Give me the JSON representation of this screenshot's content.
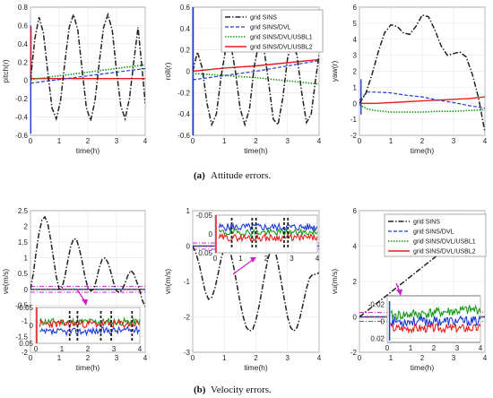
{
  "captions": {
    "a_label": "(a)",
    "a_text": "Attitude errors.",
    "b_label": "(b)",
    "b_text": "Velocity errors."
  },
  "legend_entries": [
    "grid SINS",
    "grid SINS/DVL",
    "grid SINS/DVL/USBL1",
    "grid SINS/DVL/USBL2"
  ],
  "colors": {
    "sins": "#222222",
    "dvl": "#1f3bd6",
    "usbl1": "#1a9a1a",
    "usbl2": "#e81c1c",
    "threshold": "#d11fd1"
  },
  "chart_data": [
    {
      "id": "pitch",
      "type": "line",
      "xlabel": "time(h)",
      "ylabel": "pitch(r)",
      "xlim": [
        0,
        4
      ],
      "ylim": [
        -0.6,
        0.8
      ],
      "xticks": [
        "0",
        "1",
        "2",
        "3",
        "4"
      ],
      "yticks": [
        "-0.6",
        "-0.4",
        "-0.2",
        "0",
        "0.2",
        "0.4",
        "0.6",
        "0.8"
      ],
      "grid": true,
      "series": [
        {
          "style": "sins",
          "x": [
            0,
            0.15,
            0.3,
            0.45,
            0.6,
            0.75,
            0.9,
            1.05,
            1.2,
            1.35,
            1.5,
            1.65,
            1.8,
            1.95,
            2.1,
            2.25,
            2.4,
            2.55,
            2.7,
            2.85,
            3.0,
            3.15,
            3.3,
            3.45,
            3.6,
            3.75,
            3.9,
            4.0
          ],
          "y": [
            0,
            0.45,
            0.69,
            0.52,
            0.1,
            -0.3,
            -0.42,
            -0.22,
            0.2,
            0.58,
            0.72,
            0.55,
            0.12,
            -0.3,
            -0.44,
            -0.22,
            0.2,
            0.58,
            0.72,
            0.55,
            0.1,
            -0.28,
            -0.42,
            -0.2,
            0.2,
            0.58,
            0.1,
            -0.25
          ]
        },
        {
          "style": "dvl",
          "x": [
            0,
            1,
            2,
            3,
            4
          ],
          "y": [
            -0.03,
            0.01,
            0.05,
            0.09,
            0.13
          ]
        },
        {
          "style": "usbl1",
          "x": [
            0,
            1,
            2,
            3,
            4
          ],
          "y": [
            0.01,
            0.05,
            0.09,
            0.13,
            0.17
          ]
        },
        {
          "style": "usbl2",
          "x": [
            0,
            1,
            2,
            3,
            4
          ],
          "y": [
            0.02,
            0.02,
            0.02,
            0.02,
            0.02
          ]
        }
      ]
    },
    {
      "id": "roll",
      "type": "line",
      "xlabel": "time(h)",
      "ylabel": "roll(r)",
      "xlim": [
        0,
        4
      ],
      "ylim": [
        -0.6,
        0.6
      ],
      "xticks": [
        "0",
        "1",
        "2",
        "3",
        "4"
      ],
      "yticks": [
        "-0.6",
        "-0.4",
        "-0.2",
        "0",
        "0.2",
        "0.4",
        "0.6"
      ],
      "grid": true,
      "legend": "top-right",
      "series": [
        {
          "style": "sins",
          "x": [
            0,
            0.15,
            0.3,
            0.45,
            0.6,
            0.75,
            0.9,
            1.05,
            1.2,
            1.35,
            1.5,
            1.65,
            1.8,
            1.95,
            2.1,
            2.25,
            2.4,
            2.55,
            2.7,
            2.85,
            3.0,
            3.15,
            3.3,
            3.45,
            3.6,
            3.75,
            3.9,
            4.0
          ],
          "y": [
            0,
            0.18,
            0.03,
            -0.3,
            -0.5,
            -0.4,
            -0.05,
            0.22,
            0.26,
            0.0,
            -0.35,
            -0.5,
            -0.35,
            0.05,
            0.27,
            0.22,
            -0.1,
            -0.45,
            -0.5,
            -0.25,
            0.12,
            0.28,
            0.15,
            -0.2,
            -0.48,
            -0.4,
            -0.05,
            0.15
          ]
        },
        {
          "style": "dvl",
          "x": [
            0,
            1,
            2,
            3,
            4
          ],
          "y": [
            -0.08,
            -0.04,
            0.0,
            0.05,
            0.1
          ]
        },
        {
          "style": "usbl1",
          "x": [
            0,
            1,
            2,
            3,
            4
          ],
          "y": [
            -0.02,
            -0.04,
            -0.06,
            -0.09,
            -0.12
          ]
        },
        {
          "style": "usbl2",
          "x": [
            0,
            1,
            2,
            3,
            4
          ],
          "y": [
            0.0,
            0.03,
            0.05,
            0.08,
            0.11
          ]
        }
      ]
    },
    {
      "id": "yaw",
      "type": "line",
      "xlabel": "time(h)",
      "ylabel": "yaw(r)",
      "xlim": [
        0,
        4
      ],
      "ylim": [
        -2,
        6
      ],
      "xticks": [
        "0",
        "1",
        "2",
        "3",
        "4"
      ],
      "yticks": [
        "-2",
        "-1",
        "0",
        "1",
        "2",
        "3",
        "4",
        "5",
        "6"
      ],
      "grid": true,
      "series": [
        {
          "style": "sins",
          "x": [
            0,
            0.2,
            0.4,
            0.6,
            0.8,
            1.0,
            1.2,
            1.4,
            1.6,
            1.8,
            2.0,
            2.2,
            2.4,
            2.6,
            2.8,
            3.0,
            3.2,
            3.4,
            3.6,
            3.8,
            4.0
          ],
          "y": [
            0,
            0.6,
            1.8,
            3.2,
            4.4,
            4.9,
            4.8,
            4.4,
            4.3,
            4.8,
            5.5,
            5.4,
            4.6,
            3.6,
            3.0,
            3.1,
            3.2,
            2.9,
            1.8,
            0.3,
            -1.8
          ]
        },
        {
          "style": "dvl",
          "x": [
            0,
            0.25,
            0.5,
            1.0,
            1.5,
            2.0,
            2.5,
            3.0,
            3.5,
            4.0
          ],
          "y": [
            0.2,
            0.7,
            0.7,
            0.65,
            0.5,
            0.4,
            0.2,
            0.05,
            -0.15,
            -0.3
          ]
        },
        {
          "style": "usbl1",
          "x": [
            0,
            0.25,
            0.5,
            1.0,
            1.5,
            2.0,
            2.5,
            3.0,
            3.5,
            4.0
          ],
          "y": [
            -0.1,
            -0.35,
            -0.45,
            -0.55,
            -0.55,
            -0.55,
            -0.5,
            -0.5,
            -0.45,
            -0.4
          ]
        },
        {
          "style": "usbl2",
          "x": [
            0,
            0.25,
            0.5,
            1.0,
            1.5,
            2.0,
            2.5,
            3.0,
            3.5,
            4.0
          ],
          "y": [
            0.0,
            0.0,
            0.0,
            0.05,
            0.1,
            0.15,
            0.2,
            0.25,
            0.3,
            0.4
          ]
        }
      ]
    },
    {
      "id": "ve",
      "type": "line",
      "xlabel": "time(h)",
      "ylabel": "ve(m/s)",
      "xlim": [
        0,
        4
      ],
      "ylim": [
        -2,
        2.5
      ],
      "xticks": [
        "0",
        "1",
        "2",
        "3",
        "4"
      ],
      "yticks": [
        "-2",
        "-1.5",
        "-1",
        "-0.5",
        "0",
        "0.5",
        "1",
        "1.5",
        "2",
        "2.5"
      ],
      "grid": true,
      "thresholds": [
        0.09,
        -0.09
      ],
      "series": [
        {
          "style": "sins",
          "x": [
            0,
            0.1,
            0.2,
            0.3,
            0.4,
            0.5,
            0.6,
            0.7,
            0.8,
            0.9,
            1.0,
            1.1,
            1.2,
            1.3,
            1.4,
            1.5,
            1.6,
            1.7,
            1.8,
            1.9,
            2.0,
            2.1,
            2.2,
            2.3,
            2.4,
            2.5,
            2.6,
            2.7,
            2.8,
            2.9,
            3.0,
            3.1,
            3.2,
            3.3,
            3.4,
            3.5,
            3.6,
            3.7,
            3.8,
            3.9,
            4.0
          ],
          "y": [
            0,
            0.5,
            1.2,
            1.8,
            2.2,
            2.3,
            2.1,
            1.6,
            1.0,
            0.4,
            0.0,
            0.05,
            0.4,
            0.9,
            1.35,
            1.6,
            1.6,
            1.3,
            0.9,
            0.4,
            0.05,
            -0.05,
            0.0,
            0.3,
            0.7,
            0.95,
            1.0,
            0.85,
            0.55,
            0.2,
            -0.05,
            -0.1,
            0.0,
            0.2,
            0.45,
            0.6,
            0.5,
            0.25,
            0.0,
            -0.35,
            -0.55
          ]
        },
        {
          "style": "dvl",
          "x": [
            0,
            4
          ],
          "y": [
            0,
            0
          ]
        },
        {
          "style": "usbl1",
          "x": [
            0,
            4
          ],
          "y": [
            0,
            0
          ]
        },
        {
          "style": "usbl2",
          "x": [
            0,
            4
          ],
          "y": [
            0,
            0
          ]
        }
      ],
      "inset": {
        "xlim": [
          0,
          4
        ],
        "ylim": [
          -0.05,
          0.05
        ],
        "xticks": [
          "0",
          "1",
          "2",
          "3",
          "4"
        ],
        "yticks": [
          "-0.05",
          "0",
          "0.05"
        ]
      }
    },
    {
      "id": "vn",
      "type": "line",
      "xlabel": "time(h)",
      "ylabel": "vn(m/s)",
      "xlim": [
        0,
        4
      ],
      "ylim": [
        -3,
        1
      ],
      "xticks": [
        "0",
        "1",
        "2",
        "3",
        "4"
      ],
      "yticks": [
        "-3",
        "-2",
        "-1",
        "0",
        "1"
      ],
      "grid": true,
      "thresholds": [
        0.09,
        -0.09
      ],
      "series": [
        {
          "style": "sins",
          "x": [
            0,
            0.1,
            0.2,
            0.3,
            0.4,
            0.5,
            0.6,
            0.7,
            0.8,
            0.9,
            1.0,
            1.1,
            1.2,
            1.3,
            1.4,
            1.5,
            1.6,
            1.7,
            1.8,
            1.9,
            2.0,
            2.1,
            2.2,
            2.3,
            2.4,
            2.5,
            2.6,
            2.7,
            2.8,
            2.9,
            3.0,
            3.1,
            3.2,
            3.3,
            3.4,
            3.5,
            3.6,
            3.7,
            3.8,
            3.9,
            4.0
          ],
          "y": [
            0,
            -0.2,
            -0.5,
            -0.9,
            -1.3,
            -1.5,
            -1.45,
            -1.2,
            -0.8,
            -0.35,
            -0.05,
            0.0,
            -0.2,
            -0.6,
            -1.1,
            -1.6,
            -2.0,
            -2.3,
            -2.4,
            -2.35,
            -2.1,
            -1.7,
            -1.2,
            -0.7,
            -0.3,
            -0.05,
            -0.1,
            -0.5,
            -1.0,
            -1.5,
            -2.0,
            -2.3,
            -2.4,
            -2.3,
            -2.0,
            -1.6,
            -1.2,
            -0.9,
            -0.8,
            -0.8,
            -0.75
          ]
        },
        {
          "style": "dvl",
          "x": [
            0,
            4
          ],
          "y": [
            0,
            0
          ]
        },
        {
          "style": "usbl1",
          "x": [
            0,
            4
          ],
          "y": [
            0,
            0
          ]
        },
        {
          "style": "usbl2",
          "x": [
            0,
            4
          ],
          "y": [
            0,
            0
          ]
        }
      ],
      "inset": {
        "xlim": [
          0,
          4
        ],
        "ylim": [
          -0.05,
          0.05
        ],
        "xticks": [
          "0",
          "1",
          "2",
          "3",
          "4"
        ],
        "yticks": [
          "-0.05",
          "0",
          "0.05"
        ]
      }
    },
    {
      "id": "vu",
      "type": "line",
      "xlabel": "time(h)",
      "ylabel": "vu(m/s)",
      "xlim": [
        0,
        4
      ],
      "ylim": [
        -2,
        6
      ],
      "xticks": [
        "0",
        "1",
        "2",
        "3",
        "4"
      ],
      "yticks": [
        "-2",
        "0",
        "2",
        "4",
        "6"
      ],
      "grid": true,
      "legend": "top-right",
      "thresholds": [
        0.25,
        -0.25
      ],
      "series": [
        {
          "style": "sins",
          "x": [
            0,
            1,
            2,
            3,
            4
          ],
          "y": [
            0,
            1.4,
            2.8,
            4.2,
            5.6
          ]
        },
        {
          "style": "dvl",
          "x": [
            0,
            4
          ],
          "y": [
            0,
            0
          ]
        },
        {
          "style": "usbl1",
          "x": [
            0,
            4
          ],
          "y": [
            0,
            0
          ]
        },
        {
          "style": "usbl2",
          "x": [
            0,
            4
          ],
          "y": [
            0,
            0
          ]
        }
      ],
      "inset": {
        "xlim": [
          0,
          4
        ],
        "ylim": [
          -0.025,
          0.03
        ],
        "xticks": [
          "0",
          "1",
          "2",
          "3",
          "4"
        ],
        "yticks": [
          "-0.02",
          "0",
          "0.02"
        ]
      }
    }
  ]
}
